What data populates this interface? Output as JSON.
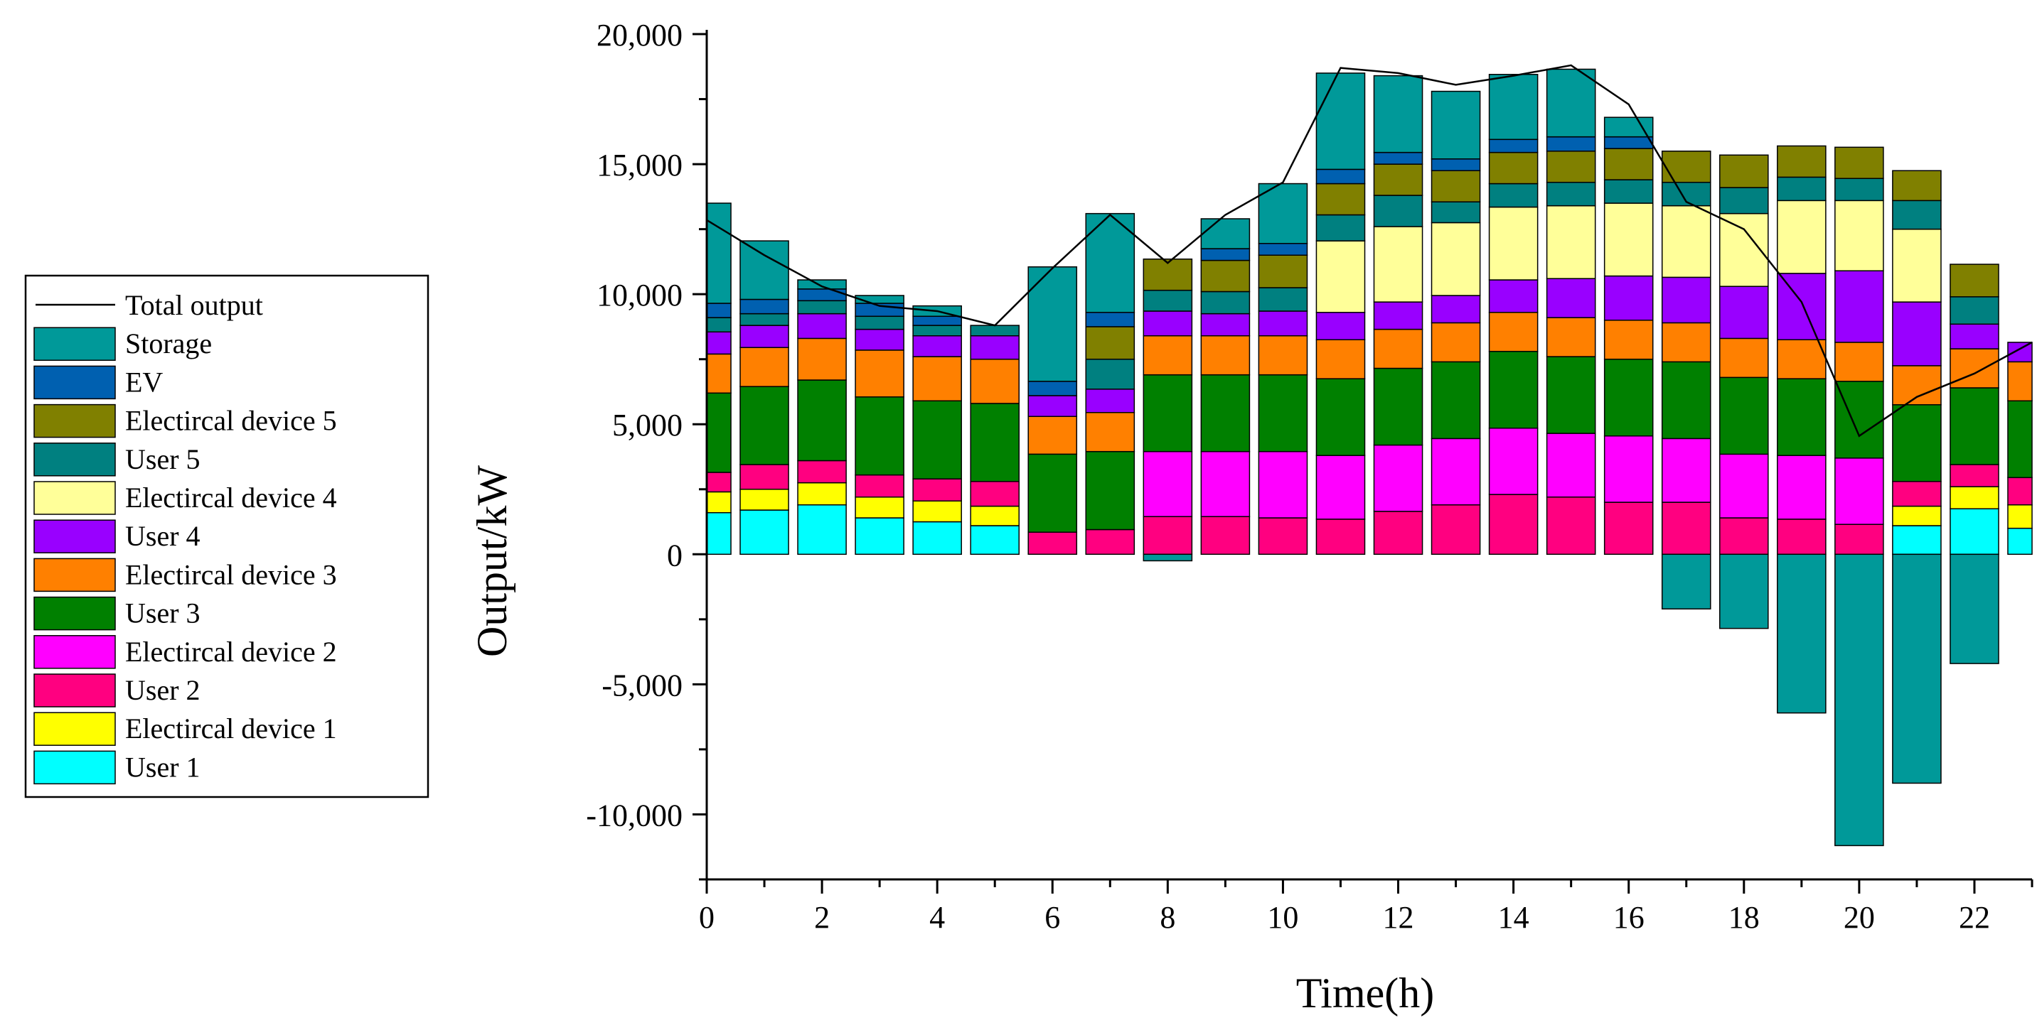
{
  "chart_data": {
    "type": "bar",
    "stacked": true,
    "xlabel": "Time(h)",
    "ylabel": "Output/kW",
    "ylim": [
      -12500,
      20000
    ],
    "yticks": [
      20000,
      15000,
      10000,
      5000,
      0,
      -5000,
      -10000
    ],
    "ytick_labels": [
      "20,000",
      "15,000",
      "10,000",
      "5,000",
      "0",
      "-5,000",
      "-10,000"
    ],
    "xlim": [
      0,
      23.0
    ],
    "xticks": [
      0,
      2,
      4,
      6,
      8,
      10,
      12,
      14,
      16,
      18,
      20,
      22
    ],
    "xtick_labels": [
      "0",
      "2",
      "4",
      "6",
      "8",
      "10",
      "12",
      "14",
      "16",
      "18",
      "20",
      "22"
    ],
    "categories": [
      0,
      1,
      2,
      3,
      4,
      5,
      6,
      7,
      8,
      9,
      10,
      11,
      12,
      13,
      14,
      15,
      16,
      17,
      18,
      19,
      20,
      21,
      22,
      23
    ],
    "legend_position": "left",
    "series": [
      {
        "name": "User 1",
        "color": "#00FFFF",
        "values": [
          1600,
          1700,
          1900,
          1400,
          1250,
          1100,
          0,
          0,
          0,
          0,
          0,
          0,
          0,
          0,
          0,
          0,
          0,
          0,
          0,
          0,
          0,
          1100,
          1750,
          1000
        ]
      },
      {
        "name": "Electircal device 1",
        "color": "#FFFF00",
        "values": [
          800,
          800,
          850,
          800,
          800,
          750,
          0,
          0,
          0,
          0,
          0,
          0,
          0,
          0,
          0,
          0,
          0,
          0,
          0,
          0,
          0,
          750,
          850,
          900
        ]
      },
      {
        "name": "User 2",
        "color": "#FF0080",
        "values": [
          750,
          950,
          850,
          850,
          850,
          950,
          850,
          950,
          1450,
          1450,
          1400,
          1350,
          1650,
          1900,
          2300,
          2200,
          2000,
          2000,
          1400,
          1350,
          1150,
          950,
          850,
          1050
        ]
      },
      {
        "name": "Electircal device 2",
        "color": "#FF00FF",
        "values": [
          0,
          0,
          0,
          0,
          0,
          0,
          0,
          0,
          2500,
          2500,
          2550,
          2450,
          2550,
          2550,
          2550,
          2450,
          2550,
          2450,
          2450,
          2450,
          2550,
          0,
          0,
          0
        ]
      },
      {
        "name": "User 3",
        "color": "#008000",
        "values": [
          3050,
          3000,
          3100,
          3000,
          3000,
          3000,
          3000,
          3000,
          2950,
          2950,
          2950,
          2950,
          2950,
          2950,
          2950,
          2950,
          2950,
          2950,
          2950,
          2950,
          2950,
          2950,
          2950,
          2950
        ]
      },
      {
        "name": "Electircal device 3",
        "color": "#FF8000",
        "values": [
          1500,
          1500,
          1600,
          1800,
          1700,
          1700,
          1450,
          1500,
          1500,
          1500,
          1500,
          1500,
          1500,
          1500,
          1500,
          1500,
          1500,
          1500,
          1500,
          1500,
          1500,
          1500,
          1500,
          1500
        ]
      },
      {
        "name": "User 4",
        "color": "#9900FF",
        "values": [
          850,
          850,
          950,
          800,
          800,
          900,
          800,
          900,
          950,
          850,
          950,
          1050,
          1050,
          1050,
          1250,
          1500,
          1700,
          1750,
          2000,
          2550,
          2750,
          2450,
          950,
          750
        ]
      },
      {
        "name": "Electircal device 4",
        "color": "#FFFF99",
        "values": [
          0,
          0,
          0,
          0,
          0,
          0,
          0,
          0,
          0,
          0,
          0,
          2750,
          2900,
          2800,
          2800,
          2800,
          2800,
          2750,
          2800,
          2800,
          2700,
          2800,
          0,
          0
        ]
      },
      {
        "name": "User 5",
        "color": "#008080",
        "values": [
          550,
          450,
          500,
          500,
          400,
          400,
          0,
          1150,
          800,
          850,
          900,
          1000,
          1200,
          800,
          900,
          900,
          900,
          900,
          1000,
          900,
          850,
          1100,
          1050,
          0
        ]
      },
      {
        "name": "Electircal device 5",
        "color": "#808000",
        "values": [
          0,
          0,
          0,
          0,
          0,
          0,
          0,
          1250,
          1200,
          1200,
          1250,
          1200,
          1200,
          1200,
          1200,
          1200,
          1200,
          1200,
          1250,
          1200,
          1200,
          1150,
          1250,
          0
        ]
      },
      {
        "name": "EV",
        "color": "#0060B0",
        "values": [
          550,
          550,
          450,
          500,
          350,
          0,
          550,
          550,
          0,
          450,
          450,
          550,
          450,
          450,
          500,
          550,
          450,
          0,
          0,
          0,
          0,
          0,
          0,
          0
        ]
      },
      {
        "name": "Storage",
        "color": "#009999",
        "values": [
          3850,
          2250,
          350,
          300,
          400,
          0,
          4400,
          3800,
          -250,
          1150,
          2300,
          3700,
          2950,
          2600,
          2500,
          2600,
          750,
          -2100,
          -2850,
          -6100,
          -11200,
          -8800,
          -4200,
          0
        ]
      }
    ],
    "total_output": {
      "name": "Total output",
      "color": "#000000",
      "values": [
        12850,
        11500,
        10300,
        9550,
        9350,
        8800,
        11000,
        13050,
        11200,
        13050,
        14300,
        18700,
        18500,
        18050,
        18400,
        18800,
        17300,
        13550,
        12500,
        9700,
        4550,
        6050,
        6950,
        8150
      ]
    }
  }
}
